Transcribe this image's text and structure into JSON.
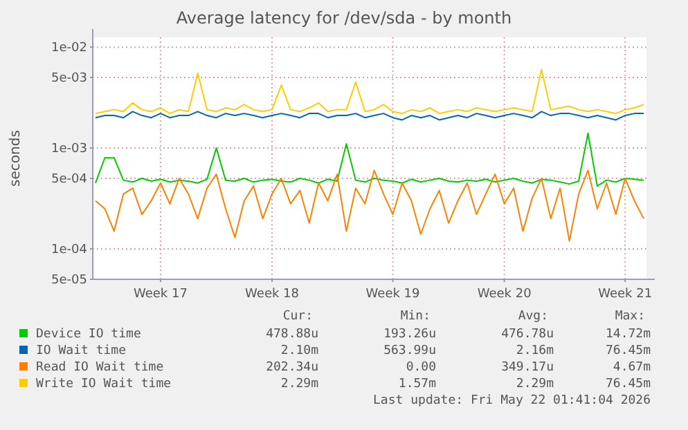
{
  "chart_data": {
    "type": "line",
    "title": "Average latency for /dev/sda - by month",
    "ylabel": "seconds",
    "log": "y",
    "grid": true,
    "legend": "bottom",
    "line_style": "solid",
    "marker": "none",
    "categories": [
      null,
      null,
      null,
      null,
      null,
      null,
      null,
      "Week 17",
      null,
      null,
      null,
      null,
      null,
      null,
      null,
      null,
      null,
      null,
      null,
      "Week 18",
      null,
      null,
      null,
      null,
      null,
      null,
      null,
      null,
      null,
      null,
      null,
      null,
      "Week 19",
      null,
      null,
      null,
      null,
      null,
      null,
      null,
      null,
      null,
      null,
      null,
      "Week 20",
      null,
      null,
      null,
      null,
      null,
      null,
      null,
      null,
      null,
      null,
      null,
      null,
      "Week 21",
      null,
      null
    ],
    "ylim": [
      5e-05,
      0.0125
    ],
    "yticks": [
      {
        "value": 5e-05,
        "label": "5e-05"
      },
      {
        "value": 0.0001,
        "label": "1e-04"
      },
      {
        "value": 0.0005,
        "label": "5e-04"
      },
      {
        "value": 0.001,
        "label": "1e-03"
      },
      {
        "value": 0.005,
        "label": "5e-03"
      },
      {
        "value": 0.01,
        "label": "1e-02"
      }
    ],
    "series": [
      {
        "name": "Device IO time",
        "color": "#00cc00",
        "values": [
          0.00045,
          0.0008,
          0.0008,
          0.00048,
          0.00046,
          0.0005,
          0.00047,
          0.00049,
          0.00046,
          0.00048,
          0.00047,
          0.00045,
          0.00049,
          0.001,
          0.00048,
          0.00047,
          0.0005,
          0.00046,
          0.00048,
          0.00049,
          0.00047,
          0.00046,
          0.0005,
          0.00048,
          0.00045,
          0.00049,
          0.00047,
          0.0011,
          0.00048,
          0.00046,
          0.0005,
          0.00048,
          0.00047,
          0.00045,
          0.00049,
          0.00046,
          0.00048,
          0.0005,
          0.00047,
          0.00046,
          0.00048,
          0.00047,
          0.00049,
          0.00046,
          0.00048,
          0.0005,
          0.00047,
          0.00045,
          0.00049,
          0.00048,
          0.00046,
          0.00044,
          0.00047,
          0.0014,
          0.00042,
          0.00048,
          0.00046,
          0.0005,
          0.00049,
          0.00048
        ]
      },
      {
        "name": "IO Wait time",
        "color": "#0066b3",
        "values": [
          0.002,
          0.0021,
          0.0021,
          0.002,
          0.0023,
          0.0021,
          0.002,
          0.0022,
          0.002,
          0.0021,
          0.0021,
          0.0023,
          0.0021,
          0.002,
          0.0022,
          0.0021,
          0.0022,
          0.0021,
          0.002,
          0.0021,
          0.0022,
          0.0021,
          0.002,
          0.0022,
          0.0022,
          0.002,
          0.0021,
          0.0021,
          0.0022,
          0.002,
          0.0021,
          0.0022,
          0.002,
          0.0019,
          0.0021,
          0.002,
          0.0021,
          0.0019,
          0.002,
          0.0021,
          0.002,
          0.0022,
          0.0021,
          0.002,
          0.0021,
          0.0022,
          0.0021,
          0.002,
          0.0023,
          0.0021,
          0.0022,
          0.0022,
          0.0021,
          0.002,
          0.0021,
          0.002,
          0.0019,
          0.0021,
          0.0022,
          0.0022
        ]
      },
      {
        "name": "Read IO Wait time",
        "color": "#ff8000",
        "values": [
          0.0003,
          0.00025,
          0.00015,
          0.00035,
          0.0004,
          0.00022,
          0.0003,
          0.00045,
          0.00028,
          0.0005,
          0.00035,
          0.0002,
          0.0004,
          0.00055,
          0.00025,
          0.00013,
          0.0003,
          0.00042,
          0.0002,
          0.00035,
          0.0005,
          0.00028,
          0.00038,
          0.00018,
          0.00045,
          0.0003,
          0.00055,
          0.00015,
          0.0004,
          0.00028,
          0.0006,
          0.00035,
          0.00022,
          0.00045,
          0.0003,
          0.00014,
          0.00025,
          0.00038,
          0.00018,
          0.0003,
          0.00045,
          0.00022,
          0.00035,
          0.00055,
          0.00028,
          0.0004,
          0.00015,
          0.00032,
          0.0005,
          0.0002,
          0.0004,
          0.00012,
          0.00035,
          0.0006,
          0.00025,
          0.00045,
          0.00022,
          0.0005,
          0.0003,
          0.0002
        ]
      },
      {
        "name": "Write IO Wait time",
        "color": "#ffcc00",
        "values": [
          0.0022,
          0.0023,
          0.0024,
          0.0023,
          0.0028,
          0.0024,
          0.0023,
          0.0025,
          0.0022,
          0.0024,
          0.0023,
          0.0055,
          0.0024,
          0.0023,
          0.0025,
          0.0024,
          0.0027,
          0.0024,
          0.0023,
          0.0024,
          0.0042,
          0.0024,
          0.0023,
          0.0025,
          0.0028,
          0.0023,
          0.0024,
          0.0024,
          0.0045,
          0.0023,
          0.0024,
          0.0027,
          0.0023,
          0.0022,
          0.0024,
          0.0023,
          0.0025,
          0.0022,
          0.0023,
          0.0024,
          0.0023,
          0.0025,
          0.0024,
          0.0023,
          0.0024,
          0.0025,
          0.0024,
          0.0023,
          0.006,
          0.0024,
          0.0025,
          0.0026,
          0.0024,
          0.0023,
          0.0024,
          0.0023,
          0.0022,
          0.0024,
          0.0025,
          0.0027
        ]
      }
    ],
    "annotations": [
      "Cur:",
      "Min:",
      "Avg:",
      "Max:",
      "478.88u",
      "193.26u",
      "476.78u",
      "14.72m",
      "2.10m",
      "563.99u",
      "2.16m",
      "76.45m",
      "202.34u",
      "0.00",
      "349.17u",
      "4.67m",
      "2.29m",
      "1.57m",
      "2.29m",
      "76.45m",
      "Last update: Fri May 22 01:41:04 2026"
    ]
  }
}
